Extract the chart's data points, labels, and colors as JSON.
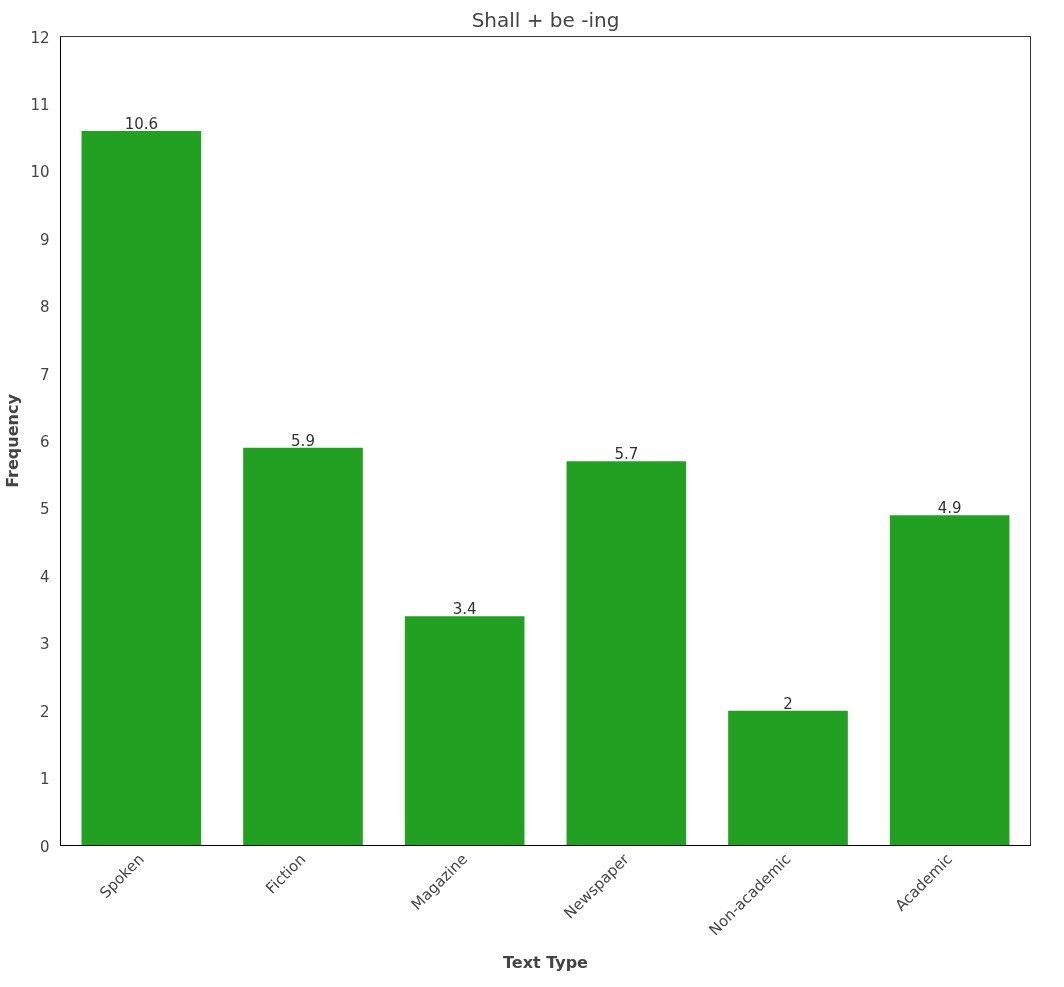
{
  "chart_data": {
    "type": "bar",
    "title": "Shall + be -ing",
    "xlabel": "Text Type",
    "ylabel": "Frequency",
    "categories": [
      "Spoken",
      "Fiction",
      "Magazine",
      "Newspaper",
      "Non-academic",
      "Academic"
    ],
    "values": [
      10.6,
      5.9,
      3.4,
      5.7,
      2,
      4.9
    ],
    "color": "#22a022",
    "ylim": [
      0,
      12
    ],
    "yticks": [
      0,
      1,
      2,
      3,
      4,
      5,
      6,
      7,
      8,
      9,
      10,
      11,
      12
    ],
    "grid": false,
    "data_labels": true
  }
}
